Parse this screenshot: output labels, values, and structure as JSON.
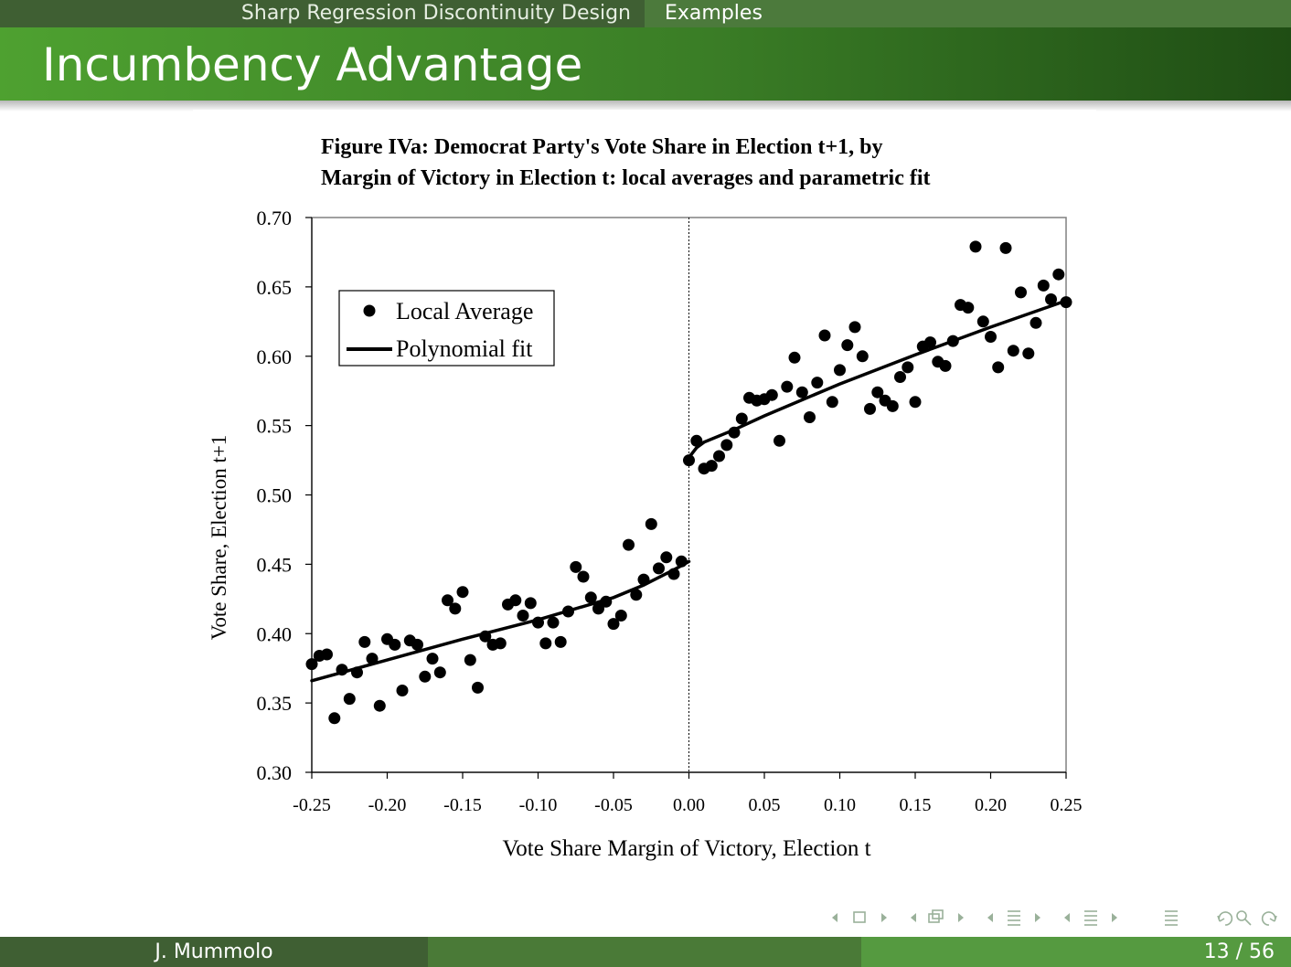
{
  "nav": {
    "section": "Sharp Regression Discontinuity Design",
    "subsection": "Examples"
  },
  "slide": {
    "title": "Incumbency Advantage"
  },
  "footer": {
    "author": "J. Mummolo",
    "page": "13 / 56"
  },
  "colors": {
    "nav_dark": "#3f5f33",
    "nav_light": "#4c7a3c",
    "title_green": "#3a7d26",
    "nav_symbol": "#9ab19a"
  },
  "chart_data": {
    "type": "scatter",
    "title": "Figure IVa: Democrat Party's Vote Share in Election t+1, by Margin of Victory in Election t: local averages and parametric fit",
    "title_lines": [
      "Figure IVa: Democrat Party's Vote Share in Election t+1, by",
      "Margin of Victory in Election t: local averages and parametric fit"
    ],
    "xlabel": "Vote Share Margin of Victory, Election t",
    "ylabel": "Vote Share, Election t+1",
    "xlim": [
      -0.25,
      0.25
    ],
    "ylim": [
      0.3,
      0.7
    ],
    "x_ticks": [
      "-0.25",
      "-0.20",
      "-0.15",
      "-0.10",
      "-0.05",
      "0.00",
      "0.05",
      "0.10",
      "0.15",
      "0.20",
      "0.25"
    ],
    "y_ticks": [
      "0.30",
      "0.35",
      "0.40",
      "0.45",
      "0.50",
      "0.55",
      "0.60",
      "0.65",
      "0.70"
    ],
    "cutoff": 0.0,
    "grid": false,
    "legend": {
      "position": "top-left",
      "entries": [
        "Local Average",
        "Polynomial fit"
      ]
    },
    "series": [
      {
        "name": "Local Average",
        "kind": "points",
        "points": [
          [
            -0.25,
            0.378
          ],
          [
            -0.245,
            0.384
          ],
          [
            -0.24,
            0.385
          ],
          [
            -0.235,
            0.339
          ],
          [
            -0.23,
            0.374
          ],
          [
            -0.225,
            0.353
          ],
          [
            -0.22,
            0.372
          ],
          [
            -0.215,
            0.394
          ],
          [
            -0.21,
            0.382
          ],
          [
            -0.205,
            0.348
          ],
          [
            -0.2,
            0.396
          ],
          [
            -0.195,
            0.392
          ],
          [
            -0.19,
            0.359
          ],
          [
            -0.185,
            0.395
          ],
          [
            -0.18,
            0.392
          ],
          [
            -0.175,
            0.369
          ],
          [
            -0.17,
            0.382
          ],
          [
            -0.165,
            0.372
          ],
          [
            -0.16,
            0.424
          ],
          [
            -0.155,
            0.418
          ],
          [
            -0.15,
            0.43
          ],
          [
            -0.145,
            0.381
          ],
          [
            -0.14,
            0.361
          ],
          [
            -0.135,
            0.398
          ],
          [
            -0.13,
            0.392
          ],
          [
            -0.125,
            0.393
          ],
          [
            -0.12,
            0.421
          ],
          [
            -0.115,
            0.424
          ],
          [
            -0.11,
            0.413
          ],
          [
            -0.105,
            0.422
          ],
          [
            -0.1,
            0.408
          ],
          [
            -0.095,
            0.393
          ],
          [
            -0.09,
            0.408
          ],
          [
            -0.085,
            0.394
          ],
          [
            -0.08,
            0.416
          ],
          [
            -0.075,
            0.448
          ],
          [
            -0.07,
            0.441
          ],
          [
            -0.065,
            0.426
          ],
          [
            -0.06,
            0.418
          ],
          [
            -0.055,
            0.423
          ],
          [
            -0.05,
            0.407
          ],
          [
            -0.045,
            0.413
          ],
          [
            -0.04,
            0.464
          ],
          [
            -0.035,
            0.428
          ],
          [
            -0.03,
            0.439
          ],
          [
            -0.025,
            0.479
          ],
          [
            -0.02,
            0.447
          ],
          [
            -0.015,
            0.455
          ],
          [
            -0.01,
            0.443
          ],
          [
            -0.005,
            0.452
          ],
          [
            0.0,
            0.525
          ],
          [
            0.005,
            0.539
          ],
          [
            0.01,
            0.519
          ],
          [
            0.015,
            0.521
          ],
          [
            0.02,
            0.528
          ],
          [
            0.025,
            0.536
          ],
          [
            0.03,
            0.545
          ],
          [
            0.035,
            0.555
          ],
          [
            0.04,
            0.57
          ],
          [
            0.045,
            0.568
          ],
          [
            0.05,
            0.569
          ],
          [
            0.055,
            0.572
          ],
          [
            0.06,
            0.539
          ],
          [
            0.065,
            0.578
          ],
          [
            0.07,
            0.599
          ],
          [
            0.075,
            0.574
          ],
          [
            0.08,
            0.556
          ],
          [
            0.085,
            0.581
          ],
          [
            0.09,
            0.615
          ],
          [
            0.095,
            0.567
          ],
          [
            0.1,
            0.59
          ],
          [
            0.105,
            0.608
          ],
          [
            0.11,
            0.621
          ],
          [
            0.115,
            0.6
          ],
          [
            0.12,
            0.562
          ],
          [
            0.125,
            0.574
          ],
          [
            0.13,
            0.568
          ],
          [
            0.135,
            0.564
          ],
          [
            0.14,
            0.585
          ],
          [
            0.145,
            0.592
          ],
          [
            0.15,
            0.567
          ],
          [
            0.155,
            0.607
          ],
          [
            0.16,
            0.61
          ],
          [
            0.165,
            0.596
          ],
          [
            0.17,
            0.593
          ],
          [
            0.175,
            0.611
          ],
          [
            0.18,
            0.637
          ],
          [
            0.185,
            0.635
          ],
          [
            0.19,
            0.679
          ],
          [
            0.195,
            0.625
          ],
          [
            0.2,
            0.614
          ],
          [
            0.205,
            0.592
          ],
          [
            0.21,
            0.678
          ],
          [
            0.215,
            0.604
          ],
          [
            0.22,
            0.646
          ],
          [
            0.225,
            0.602
          ],
          [
            0.23,
            0.624
          ],
          [
            0.235,
            0.651
          ],
          [
            0.24,
            0.641
          ],
          [
            0.245,
            0.659
          ],
          [
            0.25,
            0.639
          ]
        ]
      },
      {
        "name": "Polynomial fit",
        "kind": "line",
        "segments": [
          [
            [
              -0.25,
              0.366
            ],
            [
              -0.2,
              0.381
            ],
            [
              -0.15,
              0.396
            ],
            [
              -0.1,
              0.41
            ],
            [
              -0.05,
              0.426
            ],
            [
              -0.03,
              0.435
            ],
            [
              -0.01,
              0.446
            ],
            [
              0.0,
              0.452
            ]
          ],
          [
            [
              0.0,
              0.527
            ],
            [
              0.005,
              0.534
            ],
            [
              0.01,
              0.538
            ],
            [
              0.03,
              0.547
            ],
            [
              0.05,
              0.557
            ],
            [
              0.1,
              0.58
            ],
            [
              0.15,
              0.601
            ],
            [
              0.2,
              0.621
            ],
            [
              0.25,
              0.64
            ]
          ]
        ]
      }
    ]
  }
}
